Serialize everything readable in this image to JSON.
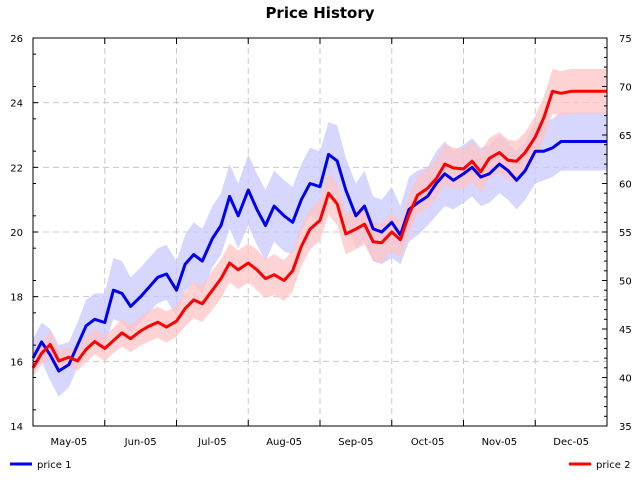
{
  "chart_data": {
    "type": "line",
    "title": "Price History",
    "x_labels": [
      "May-05",
      "Jun-05",
      "Jul-05",
      "Aug-05",
      "Sep-05",
      "Oct-05",
      "Nov-05",
      "Dec-05"
    ],
    "x_domain": [
      0,
      8
    ],
    "left_axis": {
      "ylim": [
        14,
        26
      ],
      "ticks": [
        14,
        16,
        18,
        20,
        22,
        24,
        26
      ]
    },
    "right_axis": {
      "ylim": [
        35,
        75
      ],
      "ticks": [
        35,
        40,
        45,
        50,
        55,
        60,
        65,
        70,
        75
      ]
    },
    "grid": true,
    "legend_position": "bottom",
    "colors": {
      "price1": "#0000ee",
      "price1_band": "#c8c8ff",
      "price2": "#ff0000",
      "price2_band": "#ffc4c4"
    },
    "series": [
      {
        "name": "price 1",
        "axis": "left",
        "x": [
          0.0,
          0.12,
          0.24,
          0.36,
          0.5,
          0.62,
          0.74,
          0.86,
          1.0,
          1.12,
          1.24,
          1.36,
          1.5,
          1.62,
          1.74,
          1.86,
          2.0,
          2.12,
          2.24,
          2.36,
          2.5,
          2.62,
          2.74,
          2.86,
          3.0,
          3.12,
          3.24,
          3.36,
          3.5,
          3.62,
          3.74,
          3.86,
          4.0,
          4.12,
          4.24,
          4.36,
          4.5,
          4.62,
          4.74,
          4.86,
          5.0,
          5.12,
          5.24,
          5.36,
          5.5,
          5.62,
          5.74,
          5.86,
          6.0,
          6.12,
          6.24,
          6.36,
          6.5,
          6.62,
          6.74,
          6.86,
          7.0,
          7.12,
          7.24,
          7.36,
          7.5,
          7.62,
          7.74,
          7.86,
          8.0
        ],
        "values": [
          16.1,
          16.6,
          16.2,
          15.7,
          15.9,
          16.5,
          17.1,
          17.3,
          17.2,
          18.2,
          18.1,
          17.7,
          18.0,
          18.3,
          18.6,
          18.7,
          18.2,
          19.0,
          19.3,
          19.1,
          19.8,
          20.2,
          21.1,
          20.5,
          21.3,
          20.7,
          20.2,
          20.8,
          20.5,
          20.3,
          21.0,
          21.5,
          21.4,
          22.4,
          22.2,
          21.3,
          20.5,
          20.8,
          20.1,
          20.0,
          20.3,
          19.9,
          20.7,
          20.9,
          21.1,
          21.5,
          21.8,
          21.6,
          21.8,
          22.0,
          21.7,
          21.8,
          22.1,
          21.9,
          21.6,
          21.9,
          22.5,
          22.5,
          22.6,
          22.8,
          22.8,
          22.8,
          22.8,
          22.8,
          22.8
        ],
        "band_lower": [
          15.6,
          16.0,
          15.4,
          14.9,
          15.2,
          15.8,
          16.4,
          16.6,
          16.5,
          17.3,
          17.2,
          16.9,
          17.2,
          17.5,
          17.8,
          17.9,
          17.4,
          18.2,
          18.4,
          18.1,
          18.9,
          19.3,
          20.1,
          19.5,
          20.2,
          19.6,
          19.1,
          19.7,
          19.4,
          19.3,
          20.0,
          20.5,
          20.4,
          21.3,
          21.1,
          20.3,
          19.5,
          19.7,
          19.1,
          19.0,
          19.2,
          19.0,
          19.7,
          19.9,
          20.2,
          20.5,
          20.8,
          20.7,
          20.9,
          21.1,
          20.8,
          20.9,
          21.2,
          21.0,
          20.7,
          21.0,
          21.5,
          21.6,
          21.7,
          21.9,
          21.9,
          21.9,
          21.9,
          21.9,
          21.9
        ],
        "band_upper": [
          16.7,
          17.2,
          17.0,
          16.5,
          16.6,
          17.2,
          17.9,
          18.1,
          18.1,
          19.2,
          19.1,
          18.6,
          18.9,
          19.2,
          19.5,
          19.6,
          19.1,
          19.9,
          20.3,
          20.1,
          20.8,
          21.2,
          22.1,
          21.5,
          22.4,
          21.8,
          21.3,
          21.9,
          21.6,
          21.4,
          22.1,
          22.6,
          22.5,
          23.4,
          23.3,
          22.3,
          21.5,
          21.9,
          21.1,
          21.0,
          21.4,
          20.8,
          21.7,
          21.9,
          22.0,
          22.5,
          22.8,
          22.5,
          22.7,
          22.9,
          22.6,
          22.7,
          23.0,
          22.8,
          22.5,
          22.8,
          23.4,
          23.4,
          23.5,
          23.7,
          23.7,
          23.7,
          23.7,
          23.7,
          23.7
        ]
      },
      {
        "name": "price 2",
        "axis": "right",
        "x": [
          0.0,
          0.12,
          0.24,
          0.36,
          0.5,
          0.62,
          0.74,
          0.86,
          1.0,
          1.12,
          1.24,
          1.36,
          1.5,
          1.62,
          1.74,
          1.86,
          2.0,
          2.12,
          2.24,
          2.36,
          2.5,
          2.62,
          2.74,
          2.86,
          3.0,
          3.12,
          3.24,
          3.36,
          3.5,
          3.62,
          3.74,
          3.86,
          4.0,
          4.12,
          4.24,
          4.36,
          4.5,
          4.62,
          4.74,
          4.86,
          5.0,
          5.12,
          5.24,
          5.36,
          5.5,
          5.62,
          5.74,
          5.86,
          6.0,
          6.12,
          6.24,
          6.36,
          6.5,
          6.62,
          6.74,
          6.86,
          7.0,
          7.12,
          7.24,
          7.36,
          7.5,
          7.62,
          7.74,
          7.86,
          8.0
        ],
        "values": [
          41.0,
          42.5,
          43.4,
          41.7,
          42.1,
          41.7,
          42.9,
          43.7,
          43.0,
          43.8,
          44.6,
          44.0,
          44.8,
          45.3,
          45.7,
          45.2,
          45.8,
          47.1,
          48.0,
          47.6,
          49.0,
          50.2,
          51.8,
          51.1,
          51.8,
          51.1,
          50.2,
          50.6,
          50.0,
          51.0,
          53.5,
          55.3,
          56.2,
          59.0,
          57.9,
          54.8,
          55.3,
          55.8,
          54.0,
          53.9,
          55.0,
          54.2,
          56.8,
          58.8,
          59.5,
          60.5,
          62.0,
          61.6,
          61.5,
          62.3,
          61.2,
          62.6,
          63.2,
          62.4,
          62.3,
          63.2,
          64.8,
          66.8,
          69.5,
          69.3,
          69.5,
          69.5,
          69.5,
          69.5,
          69.5
        ],
        "band_lower": [
          40.0,
          41.4,
          42.0,
          40.6,
          41.1,
          40.7,
          41.6,
          42.4,
          41.7,
          42.5,
          43.2,
          42.6,
          43.3,
          43.7,
          44.1,
          43.6,
          44.2,
          45.3,
          46.1,
          45.7,
          47.0,
          48.2,
          49.8,
          49.1,
          49.8,
          49.0,
          48.2,
          48.5,
          47.9,
          48.9,
          51.4,
          53.2,
          54.1,
          56.8,
          55.7,
          52.7,
          53.2,
          53.7,
          52.0,
          51.9,
          53.0,
          52.3,
          54.8,
          56.8,
          57.5,
          58.5,
          59.9,
          59.5,
          59.4,
          60.2,
          59.1,
          60.5,
          61.1,
          60.3,
          60.2,
          61.1,
          62.6,
          64.6,
          67.2,
          67.0,
          67.2,
          67.2,
          67.2,
          67.2,
          67.2
        ],
        "band_upper": [
          42.0,
          43.6,
          44.8,
          42.8,
          43.1,
          42.7,
          44.2,
          45.0,
          44.3,
          45.1,
          46.0,
          45.4,
          46.3,
          46.9,
          47.3,
          46.8,
          47.4,
          48.9,
          49.9,
          49.5,
          51.0,
          52.2,
          53.8,
          53.1,
          53.8,
          53.2,
          52.2,
          52.7,
          52.1,
          53.1,
          55.6,
          57.4,
          58.3,
          61.2,
          60.1,
          56.9,
          57.4,
          57.9,
          56.0,
          55.9,
          57.0,
          56.1,
          58.8,
          60.8,
          61.5,
          62.5,
          64.1,
          63.7,
          63.6,
          64.4,
          63.3,
          64.7,
          65.3,
          64.5,
          64.4,
          65.3,
          67.0,
          69.0,
          71.8,
          71.6,
          71.8,
          71.8,
          71.8,
          71.8,
          71.8
        ]
      }
    ]
  }
}
